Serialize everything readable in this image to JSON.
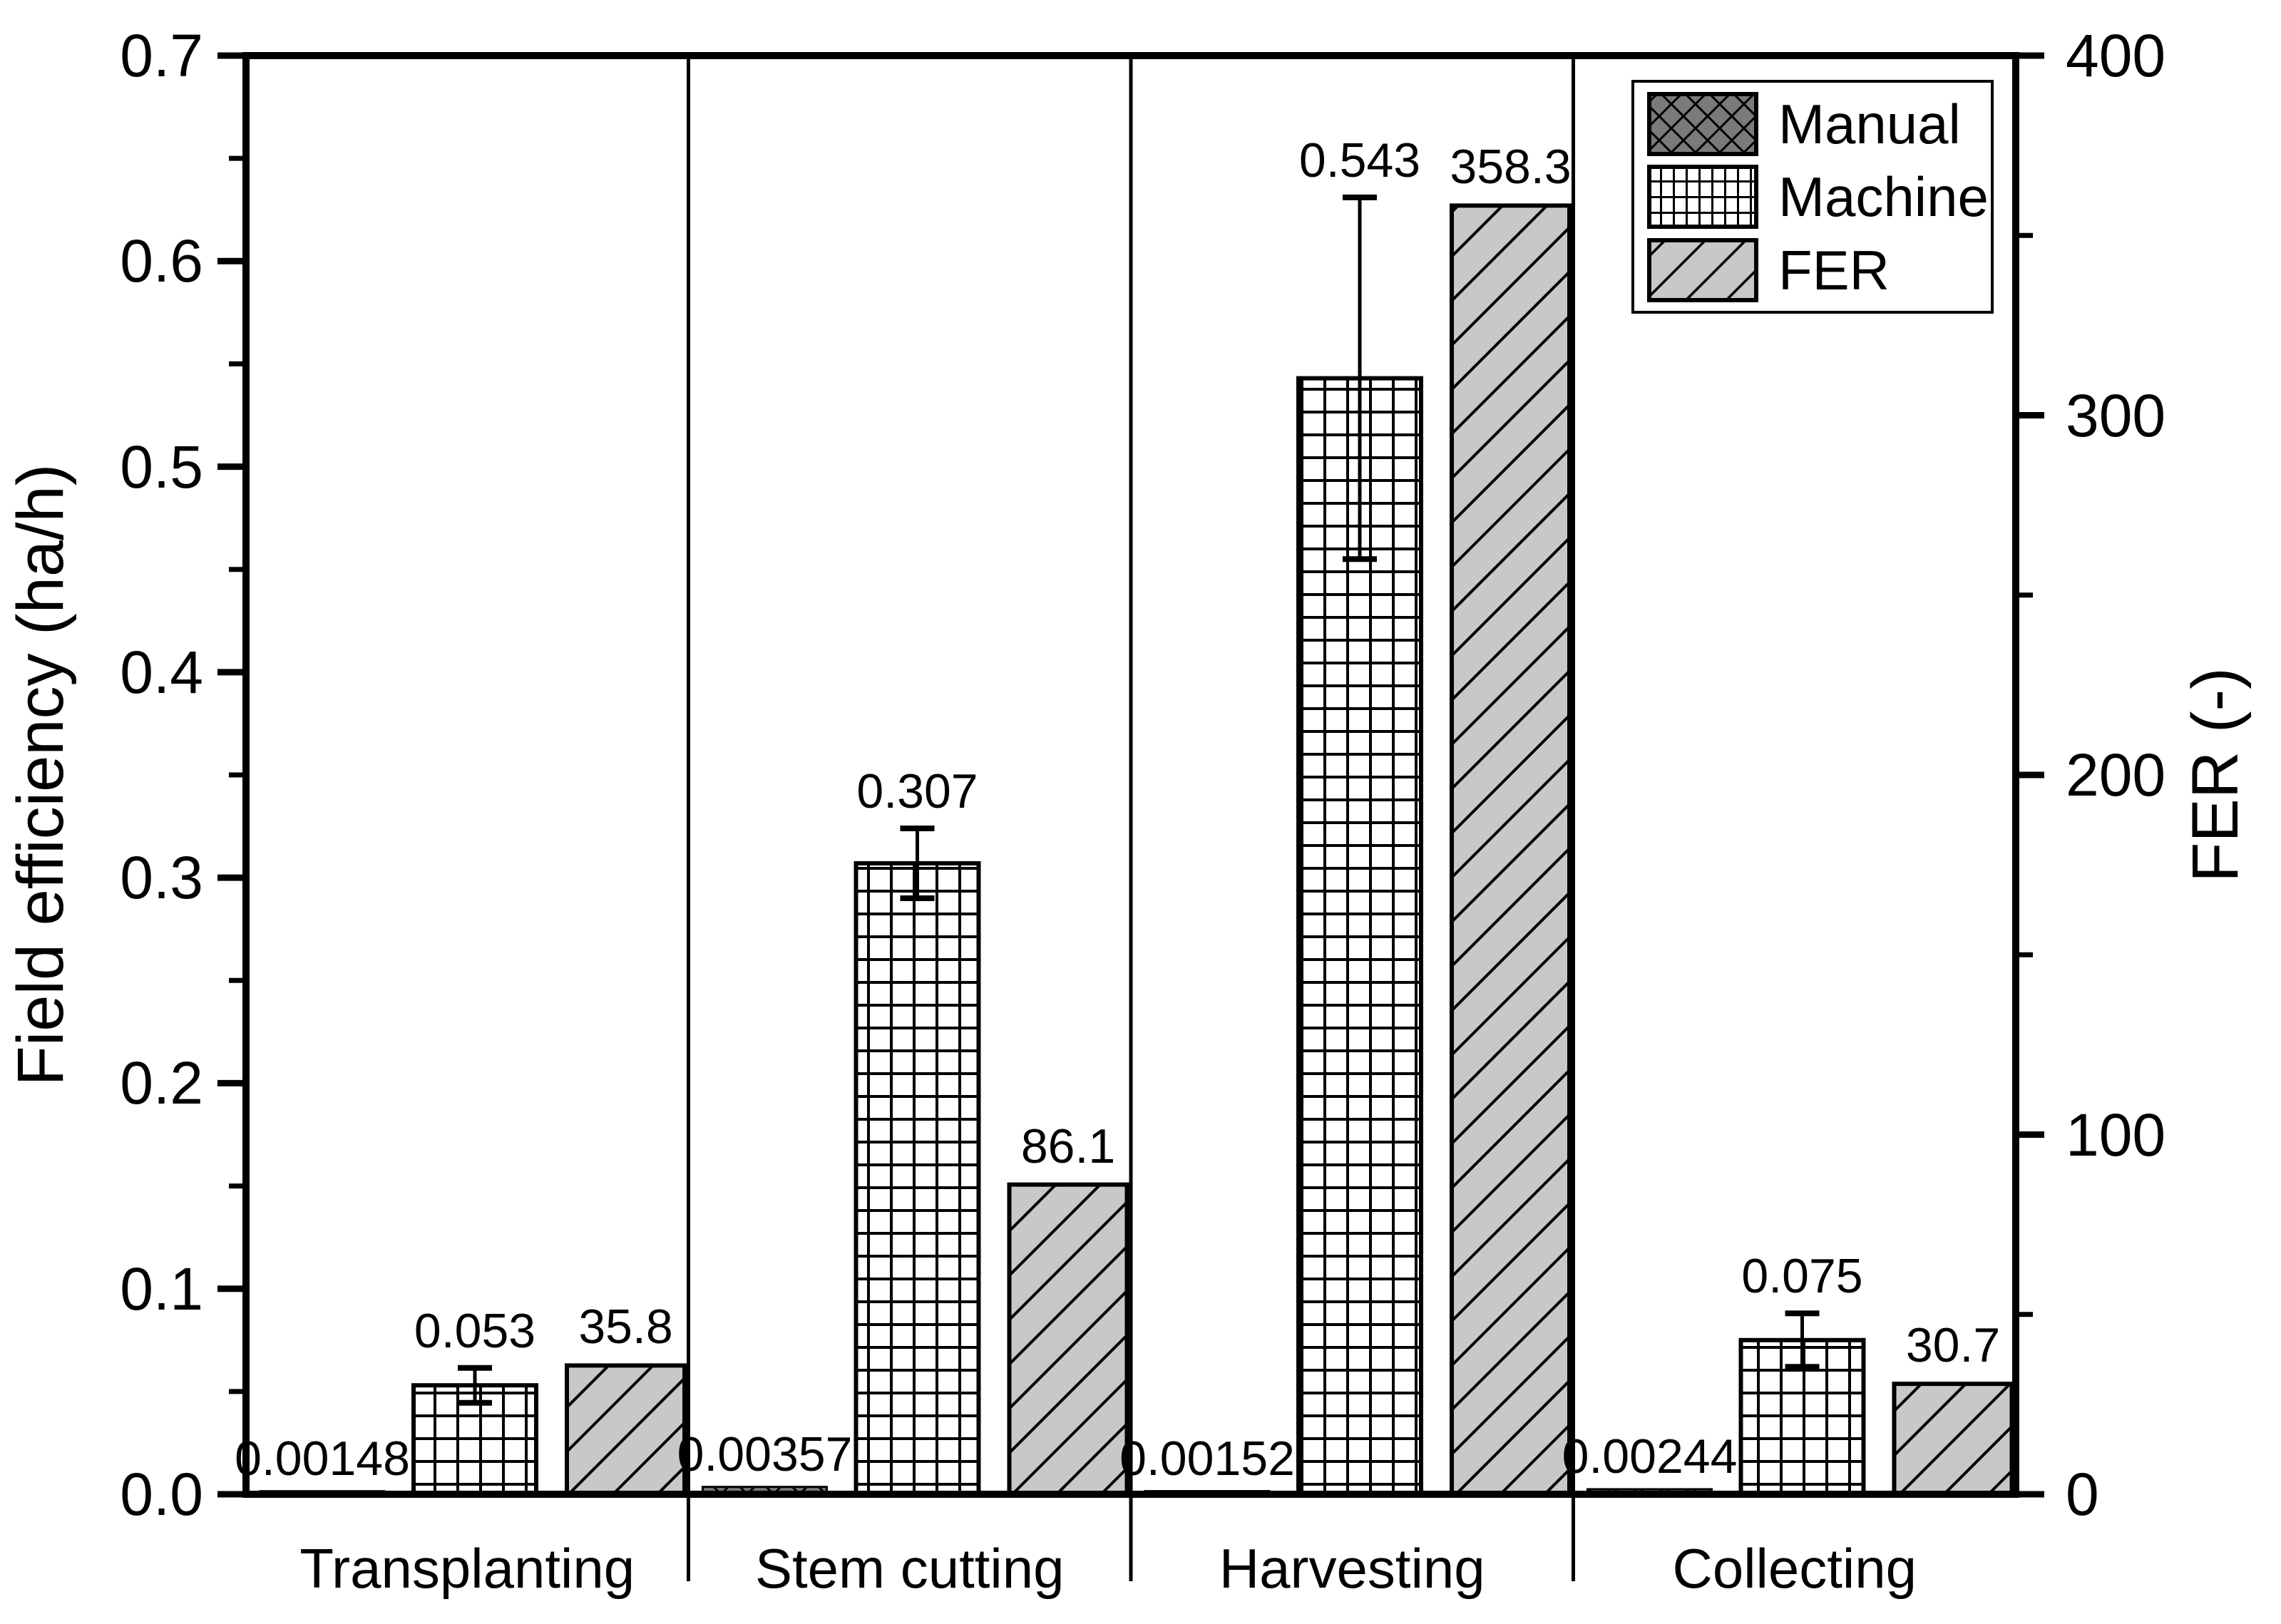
{
  "figure": {
    "background": "#ffffff",
    "line_color": "#000000"
  },
  "legend": {
    "position": "top-right",
    "entries": [
      {
        "label": "Manual",
        "swatch": "dark-crosshatch"
      },
      {
        "label": "Machine",
        "swatch": "white-grid"
      },
      {
        "label": "FER",
        "swatch": "gray-diagonal"
      }
    ]
  },
  "chart_data": {
    "type": "bar",
    "title": "",
    "categories": [
      "Transplanting",
      "Stem cutting",
      "Harvesting",
      "Collecting"
    ],
    "series": [
      {
        "name": "Manual",
        "axis": "left",
        "pattern": "crosshatch",
        "fill": "#7a7a7a",
        "values": [
          0.00148,
          0.00357,
          0.00152,
          0.00244
        ],
        "value_labels": [
          "0.00148",
          "0.00357",
          "0.00152",
          "0.00244"
        ]
      },
      {
        "name": "Machine",
        "axis": "left",
        "pattern": "grid",
        "fill": "#ffffff",
        "values": [
          0.053,
          0.307,
          0.543,
          0.075
        ],
        "value_labels": [
          "0.053",
          "0.307",
          "0.543",
          "0.075"
        ],
        "error_bars": [
          0.0085,
          0.017,
          0.088,
          0.013
        ]
      },
      {
        "name": "FER",
        "axis": "right",
        "pattern": "diagonal",
        "fill": "#c8c8c8",
        "values": [
          35.8,
          86.1,
          358.3,
          30.7
        ],
        "value_labels": [
          "35.8",
          "86.1",
          "358.3",
          "30.7"
        ]
      }
    ],
    "left_axis": {
      "title": "Field efficiency (ha/h)",
      "min": 0,
      "max": 0.7,
      "major_step": 0.1,
      "minor_step": 0.05,
      "major_tick_labels": [
        "0.0",
        "0.1",
        "0.2",
        "0.3",
        "0.4",
        "0.5",
        "0.6",
        "0.7"
      ]
    },
    "right_axis": {
      "title": "FER (-)",
      "min": 0,
      "max": 400,
      "major_step": 100,
      "minor_step": 50,
      "major_tick_labels": [
        "0",
        "100",
        "200",
        "300",
        "400"
      ]
    },
    "grid": false,
    "category_separators": true,
    "legend_position": "top-right"
  }
}
